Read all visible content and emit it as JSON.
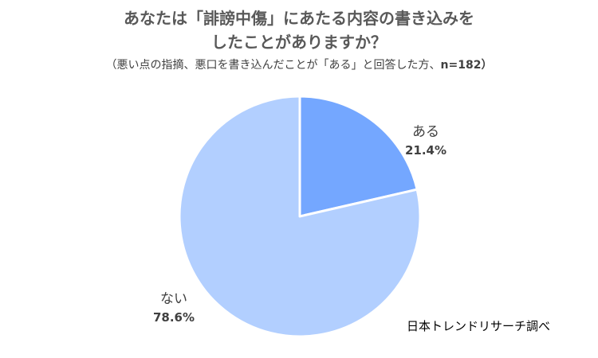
{
  "chart_data": {
    "type": "pie",
    "title_line1": "あなたは「誹謗中傷」にあたる内容の書き込みを",
    "title_line2": "したことがありますか？",
    "subtitle": "（悪い点の指摘、悪口を書き込んだことが「ある」と回答した方、",
    "subtitle_n": "n=182）",
    "slices": [
      {
        "label": "ある",
        "value": 21.4,
        "value_label": "21.4%",
        "color": "#74A7FF"
      },
      {
        "label": "ない",
        "value": 78.6,
        "value_label": "78.6%",
        "color": "#B2CFFF"
      }
    ],
    "start": "top",
    "direction": "clockwise"
  },
  "credit": "日本トレンドリサーチ調べ"
}
